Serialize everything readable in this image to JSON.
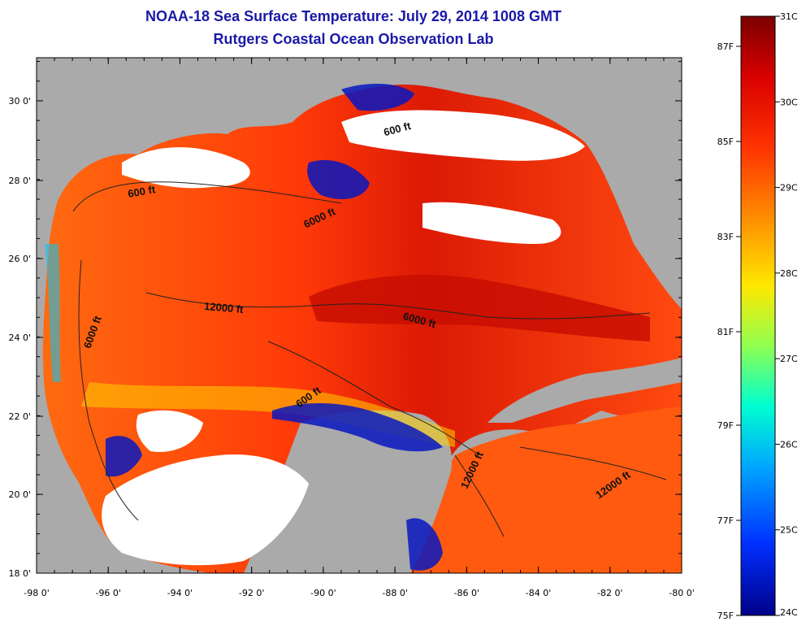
{
  "title": "NOAA-18 Sea Surface Temperature:  July 29, 2014 1008 GMT",
  "subtitle": "Rutgers Coastal Ocean Observation Lab",
  "x_ticks": [
    "-98 0'",
    "-96 0'",
    "-94 0'",
    "-92 0'",
    "-90 0'",
    "-88 0'",
    "-86 0'",
    "-84 0'",
    "-82 0'",
    "-80 0'"
  ],
  "y_ticks": [
    "30 0'",
    "28 0'",
    "26 0'",
    "24 0'",
    "22 0'",
    "20 0'",
    "18 0'"
  ],
  "contour_labels": [
    "600 ft",
    "600 ft",
    "6000 ft",
    "12000 ft",
    "6000 ft",
    "6000 ft",
    "600 ft",
    "12000 ft",
    "12000 ft"
  ],
  "colorbar": {
    "celsius": [
      "31C",
      "30C",
      "29C",
      "28C",
      "27C",
      "26C",
      "25C",
      "24C"
    ],
    "fahrenheit": [
      "87F",
      "85F",
      "83F",
      "81F",
      "79F",
      "77F",
      "75F"
    ]
  },
  "colors": {
    "land": "#aaaaaa",
    "cloud": "#ffffff",
    "title": "#1a1aa6"
  }
}
